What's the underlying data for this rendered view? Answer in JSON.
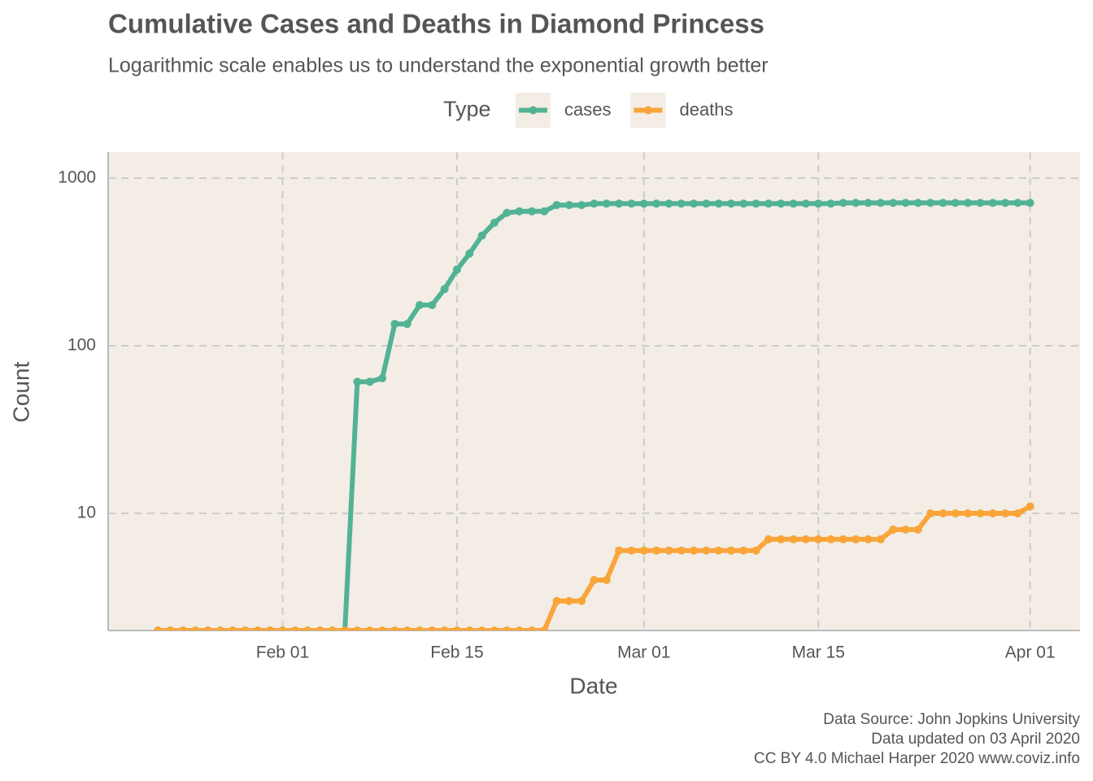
{
  "chart_data": {
    "type": "line",
    "title": "Cumulative Cases and Deaths in Diamond Princess",
    "subtitle": "Logarithmic scale enables us to understand the exponential growth better",
    "legend_title": "Type",
    "x_label": "Date",
    "y_label": "Count",
    "caption": [
      "Data Source: John Jopkins University",
      "Data updated on 03 April 2020",
      "CC BY 4.0 Michael Harper 2020 www.coviz.info"
    ],
    "log_y": true,
    "grid": true,
    "legend_position": "top",
    "xlim": [
      "Jan 18",
      "Apr 05"
    ],
    "xticks": [
      "Feb 01",
      "Feb 15",
      "Mar 01",
      "Mar 15",
      "Apr 01"
    ],
    "ylim": [
      2,
      1430
    ],
    "yticks": [
      10,
      100,
      1000
    ],
    "x": [
      "Jan 22",
      "Jan 23",
      "Jan 24",
      "Jan 25",
      "Jan 26",
      "Jan 27",
      "Jan 28",
      "Jan 29",
      "Jan 30",
      "Jan 31",
      "Feb 01",
      "Feb 02",
      "Feb 03",
      "Feb 04",
      "Feb 05",
      "Feb 06",
      "Feb 07",
      "Feb 08",
      "Feb 09",
      "Feb 10",
      "Feb 11",
      "Feb 12",
      "Feb 13",
      "Feb 14",
      "Feb 15",
      "Feb 16",
      "Feb 17",
      "Feb 18",
      "Feb 19",
      "Feb 20",
      "Feb 21",
      "Feb 22",
      "Feb 23",
      "Feb 24",
      "Feb 25",
      "Feb 26",
      "Feb 27",
      "Feb 28",
      "Feb 29",
      "Mar 01",
      "Mar 02",
      "Mar 03",
      "Mar 04",
      "Mar 05",
      "Mar 06",
      "Mar 07",
      "Mar 08",
      "Mar 09",
      "Mar 10",
      "Mar 11",
      "Mar 12",
      "Mar 13",
      "Mar 14",
      "Mar 15",
      "Mar 16",
      "Mar 17",
      "Mar 18",
      "Mar 19",
      "Mar 20",
      "Mar 21",
      "Mar 22",
      "Mar 23",
      "Mar 24",
      "Mar 25",
      "Mar 26",
      "Mar 27",
      "Mar 28",
      "Mar 29",
      "Mar 30",
      "Mar 31",
      "Apr 01"
    ],
    "series": [
      {
        "name": "cases",
        "color": "#52b394",
        "values": [
          0,
          0,
          0,
          0,
          0,
          0,
          0,
          0,
          0,
          0,
          0,
          0,
          0,
          0,
          0,
          0,
          61,
          61,
          64,
          135,
          135,
          175,
          175,
          218,
          285,
          355,
          454,
          542,
          621,
          634,
          634,
          634,
          691,
          691,
          691,
          705,
          705,
          705,
          705,
          705,
          705,
          705,
          705,
          705,
          705,
          705,
          705,
          705,
          705,
          705,
          705,
          705,
          705,
          705,
          705,
          712,
          712,
          712,
          712,
          712,
          712,
          712,
          712,
          712,
          712,
          712,
          712,
          712,
          712,
          712,
          712
        ]
      },
      {
        "name": "deaths",
        "color": "#f9a53a",
        "values": [
          0,
          0,
          0,
          0,
          0,
          0,
          0,
          0,
          0,
          0,
          0,
          0,
          0,
          0,
          0,
          0,
          0,
          0,
          0,
          0,
          0,
          0,
          0,
          0,
          0,
          0,
          0,
          0,
          0,
          2,
          2,
          2,
          3,
          3,
          3,
          4,
          4,
          6,
          6,
          6,
          6,
          6,
          6,
          6,
          6,
          6,
          6,
          6,
          6,
          7,
          7,
          7,
          7,
          7,
          7,
          7,
          7,
          7,
          7,
          8,
          8,
          8,
          10,
          10,
          10,
          10,
          10,
          10,
          10,
          10,
          11
        ]
      }
    ]
  }
}
